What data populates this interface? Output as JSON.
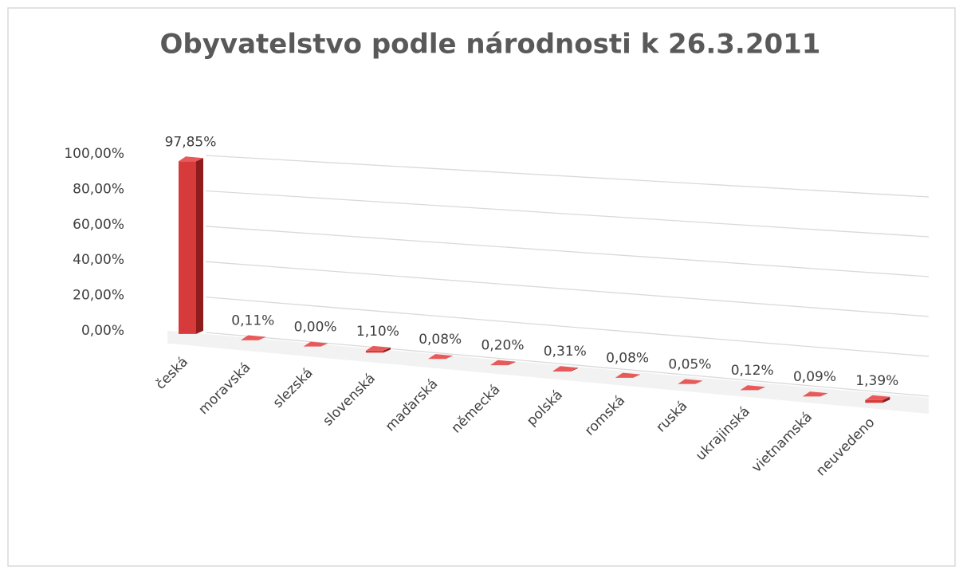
{
  "chart_data": {
    "type": "bar3d",
    "title": "Obyvatelstvo podle národnosti k 26.3.2011",
    "categories": [
      "česká",
      "moravská",
      "slezská",
      "slovenská",
      "maďarská",
      "německá",
      "polská",
      "romská",
      "ruská",
      "ukrajinská",
      "vietnamská",
      "neuvedeno"
    ],
    "values": [
      97.85,
      0.11,
      0,
      1.1,
      0.08,
      0.2,
      0.31,
      0.08,
      0.05,
      0.12,
      0.09,
      1.39
    ],
    "value_labels": [
      "97,85%",
      "0,11%",
      "0,00%",
      "1,10%",
      "0,08%",
      "0,20%",
      "0,31%",
      "0,08%",
      "0,05%",
      "0,12%",
      "0,09%",
      "1,39%"
    ],
    "color": "#d63a3a",
    "ylim": [
      0,
      100
    ],
    "yticks": [
      {
        "value": 0,
        "label": "0,00%"
      },
      {
        "value": 20,
        "label": "20,00%"
      },
      {
        "value": 40,
        "label": "40,00%"
      },
      {
        "value": 60,
        "label": "60,00%"
      },
      {
        "value": 80,
        "label": "80,00%"
      },
      {
        "value": 100,
        "label": "100,00%"
      }
    ],
    "grid": true
  }
}
